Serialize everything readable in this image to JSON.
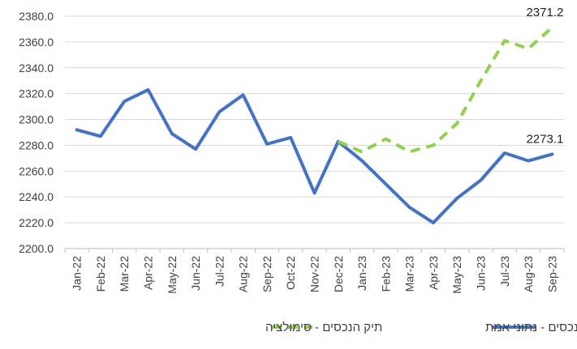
{
  "chart_data": {
    "type": "line",
    "title": "",
    "xlabel": "",
    "ylabel": "",
    "ylim": [
      2200,
      2380
    ],
    "y_ticks": [
      2200,
      2220,
      2240,
      2260,
      2280,
      2300,
      2320,
      2340,
      2360,
      2380
    ],
    "y_tick_labels": [
      "2200.0",
      "2220.0",
      "2240.0",
      "2260.0",
      "2280.0",
      "2300.0",
      "2320.0",
      "2340.0",
      "2360.0",
      "2380.0"
    ],
    "grid": true,
    "legend_position": "bottom",
    "categories": [
      "Jan-22",
      "Feb-22",
      "Mar-22",
      "Apr-22",
      "May-22",
      "Jun-22",
      "Jul-22",
      "Aug-22",
      "Sep-22",
      "Oct-22",
      "Nov-22",
      "Dec-22",
      "Jan-23",
      "Feb-23",
      "Mar-23",
      "Apr-23",
      "May-23",
      "Jun-23",
      "Jul-23",
      "Aug-23",
      "Sep-23"
    ],
    "series": [
      {
        "name": "תיק הנכסים - נתוני אמת",
        "style": "solid",
        "color": "#4472C4",
        "values": [
          2292,
          2287,
          2314,
          2323,
          2289,
          2277,
          2306,
          2319,
          2281,
          2286,
          2243,
          2283,
          2268,
          2250,
          2232,
          2220,
          2239,
          2253,
          2274,
          2268,
          2273.1
        ]
      },
      {
        "name": "תיק הנכסים - סימולציה",
        "style": "dashed",
        "color": "#92D050",
        "values": [
          null,
          null,
          null,
          null,
          null,
          null,
          null,
          null,
          null,
          null,
          null,
          2283,
          2275,
          2285,
          2275,
          2280,
          2297,
          2330,
          2361,
          2355,
          2371.2
        ]
      }
    ],
    "annotations": [
      {
        "series": 1,
        "index": 20,
        "text": "2371.2"
      },
      {
        "series": 0,
        "index": 20,
        "text": "2273.1"
      }
    ]
  }
}
